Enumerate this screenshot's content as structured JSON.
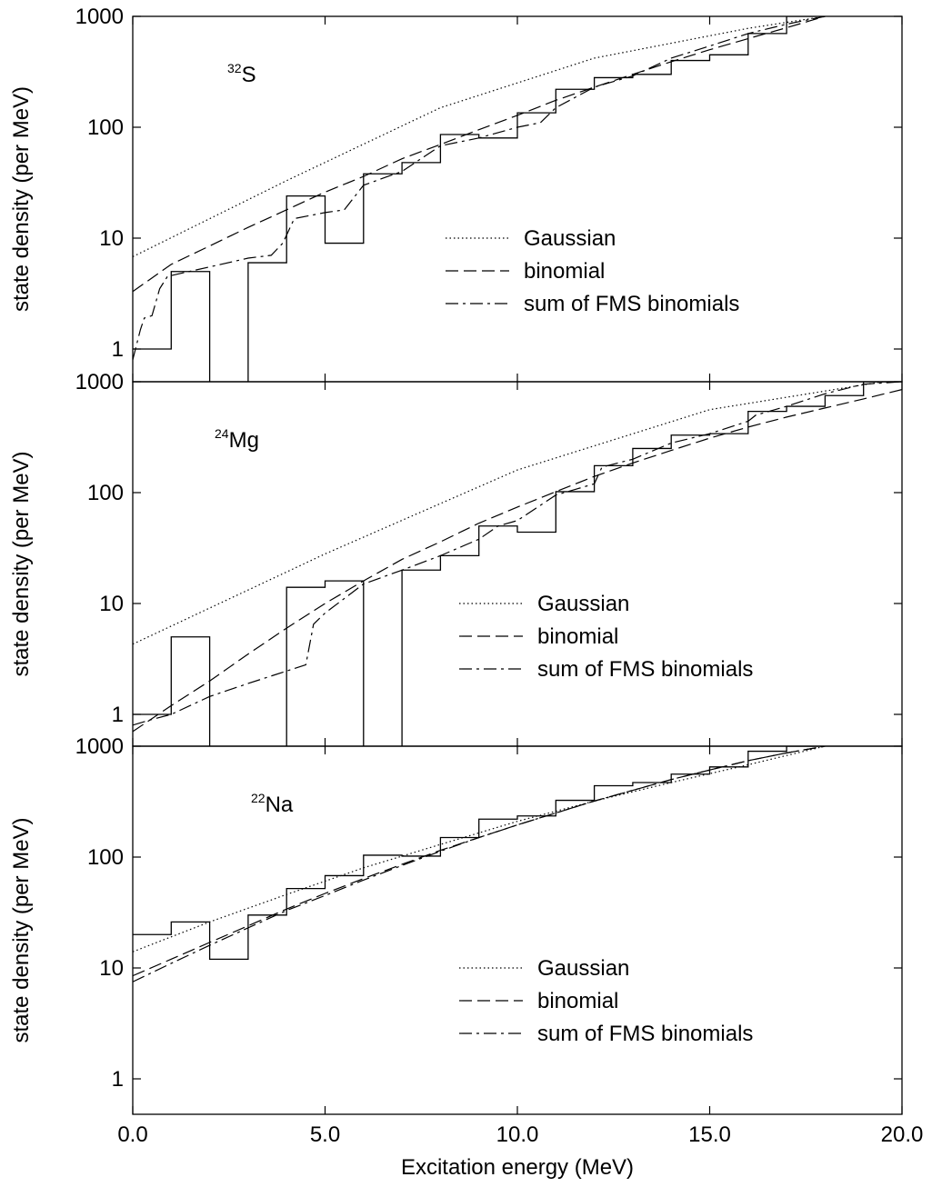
{
  "chart_data": {
    "type": "line",
    "x_axis": {
      "label": "Excitation energy (MeV)",
      "range": [
        0,
        20
      ],
      "ticks": [
        0,
        5,
        10,
        15,
        20
      ],
      "tick_labels": [
        "0.0",
        "5.0",
        "10.0",
        "15.0",
        "20.0"
      ]
    },
    "y_axis": {
      "label": "state density (per MeV)",
      "scale": "log",
      "range": [
        0.75,
        1000
      ],
      "ticks": [
        1,
        10,
        100,
        1000
      ],
      "tick_labels": [
        "1",
        "10",
        "100",
        "1000"
      ]
    },
    "legend_position": "right",
    "panels": [
      {
        "nuclide": {
          "mass": "32",
          "symbol": "S"
        },
        "legend": [
          "Gaussian",
          "binomial",
          "sum of FMS binomials"
        ],
        "histogram": {
          "edges": [
            0,
            1,
            2,
            3,
            4,
            5,
            6,
            7,
            8,
            9,
            10,
            11,
            12,
            13,
            14,
            15,
            16,
            17,
            18
          ],
          "values": [
            1,
            5,
            0,
            6,
            24,
            9,
            38,
            48,
            86,
            80,
            135,
            220,
            280,
            300,
            400,
            450,
            700,
            1000
          ]
        },
        "series": [
          {
            "name": "Gaussian",
            "style": "dotted",
            "x": [
              0,
              4,
              8,
              12,
              16,
              18
            ],
            "y": [
              6.8,
              33,
              150,
              420,
              780,
              1000
            ]
          },
          {
            "name": "binomial",
            "style": "dashed",
            "x": [
              0,
              1,
              2,
              3,
              4,
              5,
              6,
              7,
              8,
              9,
              10,
              11,
              12,
              13,
              14,
              15,
              16,
              17,
              18
            ],
            "y": [
              3.3,
              5.8,
              8.5,
              12.5,
              18,
              26,
              36,
              52,
              70,
              95,
              128,
              175,
              230,
              300,
              390,
              500,
              630,
              790,
              1000
            ]
          },
          {
            "name": "sum of FMS binomials",
            "style": "dashdot",
            "x": [
              0,
              0.2,
              0.3,
              0.5,
              0.7,
              0.9,
              1,
              2,
              3,
              3.6,
              3.9,
              4.2,
              5,
              5.5,
              6,
              7,
              8,
              9,
              10,
              10.6,
              11,
              12,
              13,
              14,
              15,
              16,
              17,
              18
            ],
            "y": [
              0.8,
              1.5,
              1.9,
              2,
              3.5,
              4.5,
              4.6,
              5.5,
              6.6,
              7,
              9,
              15,
              17,
              18,
              30,
              40,
              68,
              80,
              100,
              110,
              150,
              230,
              290,
              420,
              540,
              700,
              850,
              1000
            ]
          }
        ]
      },
      {
        "nuclide": {
          "mass": "24",
          "symbol": "Mg"
        },
        "legend": [
          "Gaussian",
          "binomial",
          "sum of FMS binomials"
        ],
        "histogram": {
          "edges": [
            0,
            1,
            2,
            3,
            4,
            5,
            6,
            7,
            8,
            9,
            10,
            11,
            12,
            13,
            14,
            15,
            16,
            17,
            18,
            19,
            20
          ],
          "values": [
            1,
            5,
            0,
            0,
            14,
            16,
            0,
            20,
            27,
            50,
            44,
            102,
            175,
            250,
            330,
            340,
            540,
            600,
            750,
            1000
          ]
        },
        "series": [
          {
            "name": "Gaussian",
            "style": "dotted",
            "x": [
              0,
              5,
              10,
              15,
              19.5
            ],
            "y": [
              4.3,
              28,
              160,
              560,
              1000
            ]
          },
          {
            "name": "binomial",
            "style": "dashed",
            "x": [
              0,
              1,
              2,
              3,
              4,
              5,
              6,
              7,
              8,
              9,
              10,
              11,
              12,
              13,
              14,
              15,
              16,
              17,
              18,
              19,
              20
            ],
            "y": [
              0.7,
              1.2,
              2.0,
              3.5,
              6,
              10,
              16,
              25,
              36,
              53,
              74,
              102,
              140,
              185,
              240,
              310,
              390,
              480,
              580,
              700,
              850
            ]
          },
          {
            "name": "sum of FMS binomials",
            "style": "dashdot",
            "x": [
              0,
              0.5,
              1,
              2,
              3,
              4.5,
              4.7,
              5,
              6,
              7,
              8,
              9,
              9.5,
              10,
              11,
              12,
              12.2,
              13,
              14,
              15,
              16,
              16.2,
              17,
              18,
              19,
              20
            ],
            "y": [
              0.8,
              0.9,
              1.0,
              1.45,
              1.9,
              2.8,
              6.5,
              8.2,
              15,
              20,
              27,
              38,
              50,
              56,
              95,
              120,
              170,
              200,
              280,
              340,
              440,
              500,
              600,
              780,
              950,
              1000
            ]
          }
        ]
      },
      {
        "nuclide": {
          "mass": "22",
          "symbol": "Na"
        },
        "legend": [
          "Gaussian",
          "binomial",
          "sum of FMS binomials"
        ],
        "histogram": {
          "edges": [
            0,
            1,
            2,
            3,
            4,
            5,
            6,
            7,
            8,
            9,
            10,
            11,
            12,
            13,
            14,
            15,
            16,
            17,
            18
          ],
          "values": [
            20,
            26,
            12,
            30,
            52,
            68,
            104,
            102,
            150,
            220,
            235,
            325,
            440,
            470,
            560,
            650,
            900,
            1000
          ]
        },
        "series": [
          {
            "name": "Gaussian",
            "style": "dotted",
            "x": [
              0,
              2,
              4,
              6,
              8,
              10,
              12,
              14,
              16,
              18
            ],
            "y": [
              14,
              26,
              46,
              80,
              130,
              210,
              320,
              470,
              680,
              1000
            ]
          },
          {
            "name": "binomial",
            "style": "dashed",
            "x": [
              0,
              1,
              2,
              3,
              4,
              5,
              6,
              7,
              8,
              9,
              10,
              11,
              12,
              13,
              14,
              15,
              16,
              17,
              18
            ],
            "y": [
              8.5,
              12,
              17,
              24,
              34,
              47,
              64,
              86,
              115,
              150,
              195,
              250,
              320,
              400,
              500,
              610,
              740,
              870,
              1000
            ]
          },
          {
            "name": "sum of FMS binomials",
            "style": "dashdot",
            "x": [
              0,
              1,
              2,
              3,
              4,
              5,
              6,
              7,
              8,
              9,
              10,
              11,
              12,
              13,
              14,
              15,
              16,
              17,
              18
            ],
            "y": [
              7.5,
              11,
              16,
              23,
              33,
              45,
              62,
              84,
              113,
              150,
              195,
              250,
              320,
              400,
              500,
              610,
              740,
              870,
              1000
            ]
          }
        ]
      }
    ]
  }
}
